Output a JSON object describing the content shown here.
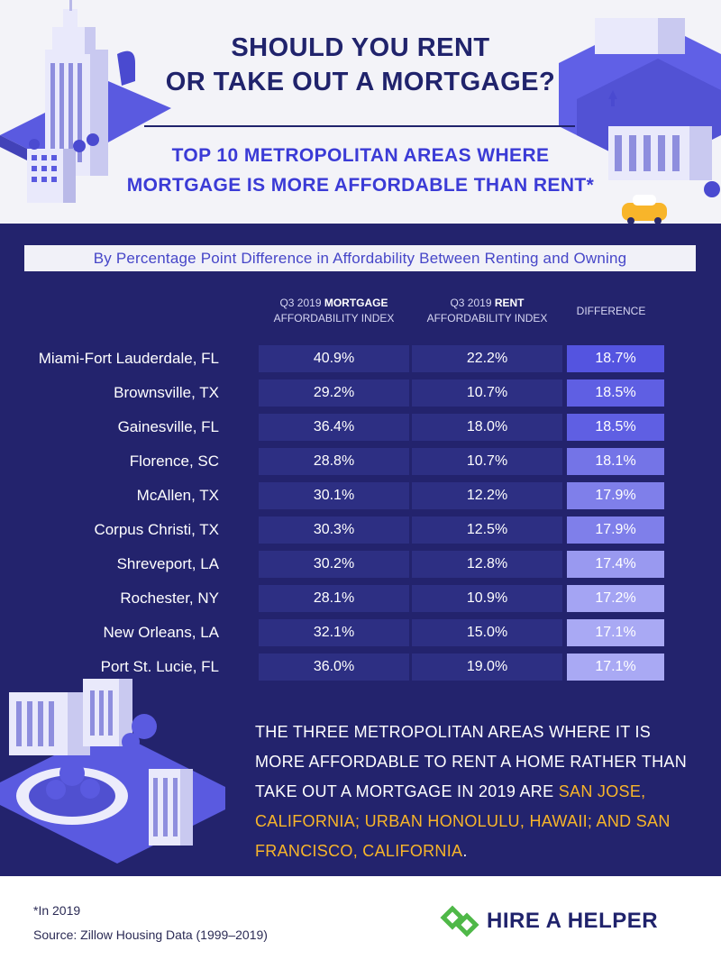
{
  "header": {
    "title_line1": "SHOULD YOU RENT",
    "title_line2": "OR TAKE OUT A MORTGAGE?",
    "subtitle_line1": "TOP 10 METROPOLITAN AREAS WHERE",
    "subtitle_line2": "MORTGAGE IS MORE AFFORDABLE THAN RENT*"
  },
  "banner": "By Percentage Point Difference in Affordability Between Renting and Owning",
  "columns": {
    "mortgage_prefix": "Q3 2019 ",
    "mortgage_bold": "MORTGAGE",
    "mortgage_sub": "AFFORDABILITY INDEX",
    "rent_prefix": "Q3 2019 ",
    "rent_bold": "RENT",
    "rent_sub": "AFFORDABILITY INDEX",
    "difference": "DIFFERENCE"
  },
  "chart_data": {
    "type": "table",
    "columns": [
      "Q3 2019 MORTGAGE AFFORDABILITY INDEX",
      "Q3 2019 RENT AFFORDABILITY INDEX",
      "DIFFERENCE"
    ],
    "rows": [
      {
        "metro": "Miami-Fort Lauderdale, FL",
        "mortgage": "40.9%",
        "rent": "22.2%",
        "difference": "18.7%",
        "diff_value": 18.7
      },
      {
        "metro": "Brownsville, TX",
        "mortgage": "29.2%",
        "rent": "10.7%",
        "difference": "18.5%",
        "diff_value": 18.5
      },
      {
        "metro": "Gainesville, FL",
        "mortgage": "36.4%",
        "rent": "18.0%",
        "difference": "18.5%",
        "diff_value": 18.5
      },
      {
        "metro": "Florence, SC",
        "mortgage": "28.8%",
        "rent": "10.7%",
        "difference": "18.1%",
        "diff_value": 18.1
      },
      {
        "metro": "McAllen, TX",
        "mortgage": "30.1%",
        "rent": "12.2%",
        "difference": "17.9%",
        "diff_value": 17.9
      },
      {
        "metro": "Corpus Christi, TX",
        "mortgage": "30.3%",
        "rent": "12.5%",
        "difference": "17.9%",
        "diff_value": 17.9
      },
      {
        "metro": "Shreveport, LA",
        "mortgage": "30.2%",
        "rent": "12.8%",
        "difference": "17.4%",
        "diff_value": 17.4
      },
      {
        "metro": "Rochester, NY",
        "mortgage": "28.1%",
        "rent": "10.9%",
        "difference": "17.2%",
        "diff_value": 17.2
      },
      {
        "metro": "New Orleans, LA",
        "mortgage": "32.1%",
        "rent": "15.0%",
        "difference": "17.1%",
        "diff_value": 17.1
      },
      {
        "metro": "Port St. Lucie, FL",
        "mortgage": "36.0%",
        "rent": "19.0%",
        "difference": "17.1%",
        "diff_value": 17.1
      }
    ]
  },
  "note": {
    "text": "THE THREE METROPOLITAN AREAS WHERE IT IS MORE AFFORDABLE TO RENT A HOME RATHER THAN TAKE OUT A MORTGAGE IN 2019 ARE ",
    "highlight": "SAN JOSE, CALIFORNIA; URBAN HONOLULU, HAWAII; AND SAN FRANCISCO, CALIFORNIA",
    "end": "."
  },
  "footer": {
    "footnote": "*In 2019",
    "source": "Source: Zillow Housing Data (1999–2019)",
    "logo_text": "HIRE A HELPER"
  },
  "colors": {
    "navy": "#23236d",
    "title": "#20236c",
    "subtitle": "#3b3bd6",
    "cell": "#2d2f83",
    "diff_high": "#5454e0",
    "diff_low": "#a9a9f4",
    "highlight": "#f8b52a",
    "logo_green": "#4fb848"
  }
}
